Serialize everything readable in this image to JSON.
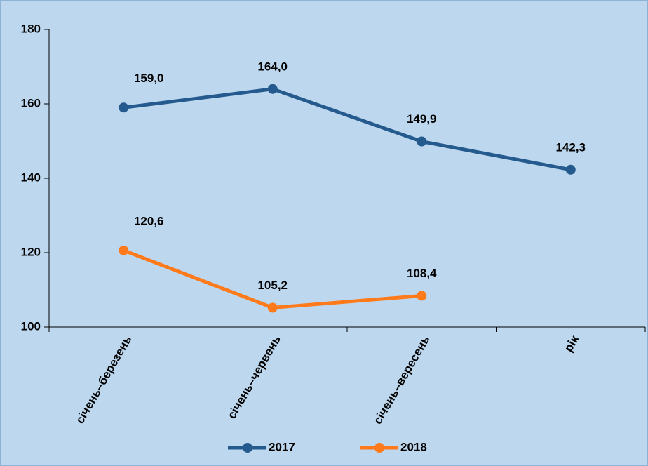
{
  "chart_data": {
    "type": "line",
    "categories": [
      "січень–березень",
      "січень–червень",
      "січень–вересень",
      "рік"
    ],
    "series": [
      {
        "name": "2017",
        "color": "#245a8d",
        "values": [
          159.0,
          164.0,
          149.9,
          142.3
        ],
        "value_labels": [
          "159,0",
          "164,0",
          "149,9",
          "142,3"
        ]
      },
      {
        "name": "2018",
        "color": "#ff7a1a",
        "values": [
          120.6,
          105.2,
          108.4,
          null
        ],
        "value_labels": [
          "120,6",
          "105,2",
          "108,4",
          null
        ]
      }
    ],
    "ylim": [
      100,
      180
    ],
    "yticks": [
      100,
      120,
      140,
      160,
      180
    ],
    "grid": false,
    "legend": "bottom"
  }
}
